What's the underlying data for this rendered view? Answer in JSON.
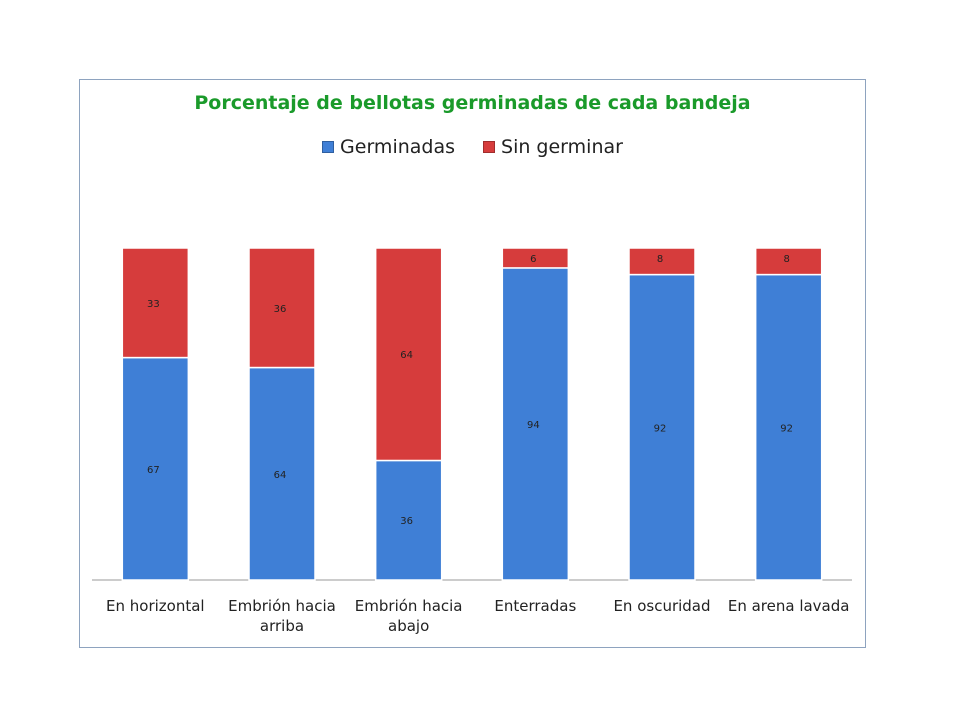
{
  "chart_data": {
    "type": "bar",
    "stacked": true,
    "title": "Porcentaje de bellotas germinadas de cada bandeja",
    "categories": [
      "En horizontal",
      "Embrión hacia arriba",
      "Embrión hacia abajo",
      "Enterradas",
      "En oscuridad",
      "En arena lavada"
    ],
    "series": [
      {
        "name": "Germinadas",
        "values": [
          67,
          64,
          36,
          94,
          92,
          92
        ],
        "color": "#3f7fd6"
      },
      {
        "name": "Sin germinar",
        "values": [
          33,
          36,
          64,
          6,
          8,
          8
        ],
        "color": "#d63c3c"
      }
    ],
    "ylim": [
      0,
      100
    ],
    "grid": false,
    "legend_position": "top",
    "data_labels": true
  }
}
